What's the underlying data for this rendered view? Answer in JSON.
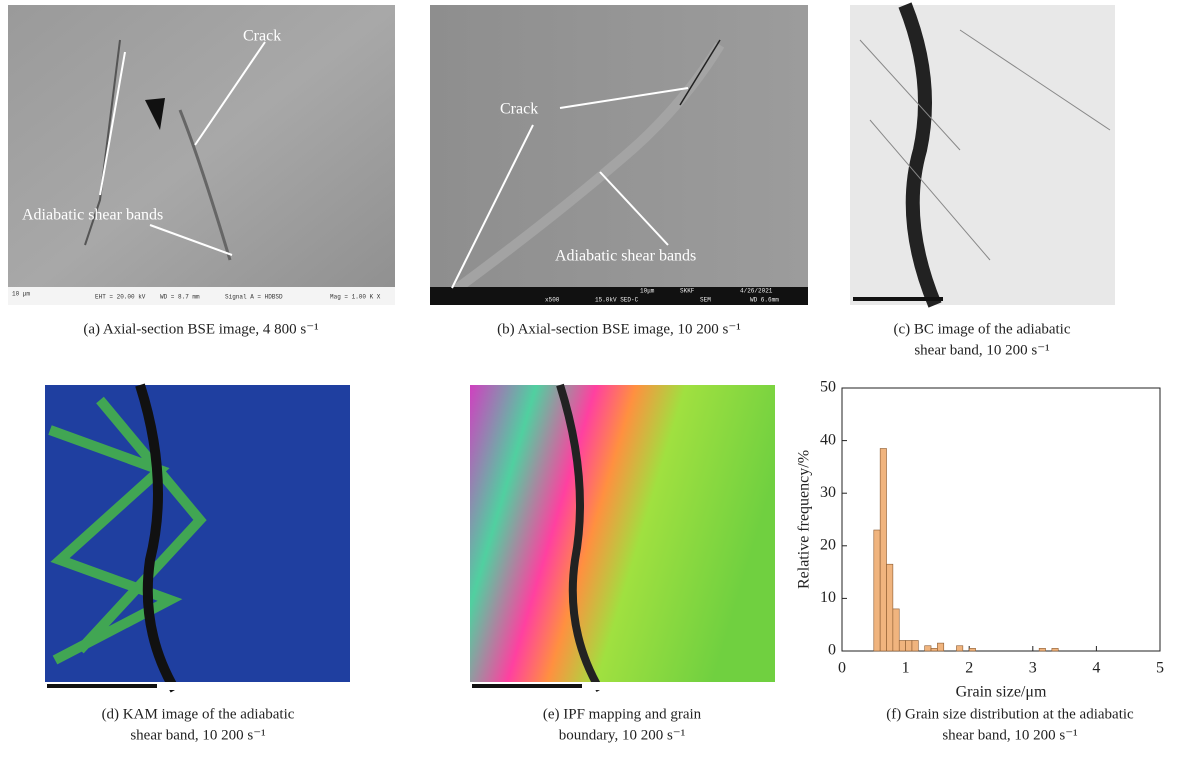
{
  "panels": [
    {
      "caption": [
        "(a) Axial-section BSE image, 4 800 s⁻¹"
      ],
      "annotations": [
        "Crack",
        "Adiabatic shear bands"
      ],
      "info": [
        "10 μm",
        "EHT = 20.00 kV",
        "WD = 8.7 mm",
        "Signal A = HDBSD",
        "Mag = 1.00 K X"
      ]
    },
    {
      "caption": [
        "(b) Axial-section BSE image, 10 200 s⁻¹"
      ],
      "annotations": [
        "Crack",
        "Adiabatic shear bands"
      ],
      "info": [
        "x500",
        "15.0kV SED-C",
        "10μm",
        "SKKF",
        "SEM",
        "4/26/2021",
        "WD 6.6mm"
      ]
    },
    {
      "caption": [
        "(c) BC image of the adiabatic",
        "shear band, 10 200 s⁻¹"
      ]
    },
    {
      "caption": [
        "(d) KAM image of the adiabatic",
        "shear band, 10 200 s⁻¹"
      ]
    },
    {
      "caption": [
        "(e) IPF mapping and grain",
        "boundary, 10 200 s⁻¹"
      ]
    },
    {
      "caption": [
        "(f) Grain size distribution at the adiabatic",
        "shear band, 10 200 s⁻¹"
      ]
    }
  ],
  "chart_data": {
    "type": "histogram",
    "xlabel": "Grain size/μm",
    "ylabel": "Relative frequency/%",
    "color": "#f0b47e",
    "bins": [
      0.5,
      0.6,
      0.7,
      0.8,
      0.9,
      1.0,
      1.1,
      1.2,
      1.3,
      1.4,
      1.5,
      1.6,
      1.7,
      1.8,
      1.9,
      2.0,
      2.1,
      2.2,
      2.3,
      2.4,
      2.5,
      2.6,
      2.7,
      2.8,
      2.9,
      3.0,
      3.1,
      3.2,
      3.3,
      3.4
    ],
    "values": [
      23,
      38.5,
      16.5,
      8,
      2,
      2,
      2,
      0,
      1,
      0.5,
      1.5,
      0,
      0,
      1,
      0,
      0.5,
      0,
      0,
      0,
      0,
      0,
      0,
      0,
      0,
      0,
      0,
      0.5,
      0,
      0.5
    ],
    "xlim": [
      0,
      5
    ],
    "ylim": [
      0,
      50
    ],
    "xticks": [
      0,
      1,
      2,
      3,
      4,
      5
    ],
    "yticks": [
      0,
      10,
      20,
      30,
      40,
      50
    ]
  }
}
